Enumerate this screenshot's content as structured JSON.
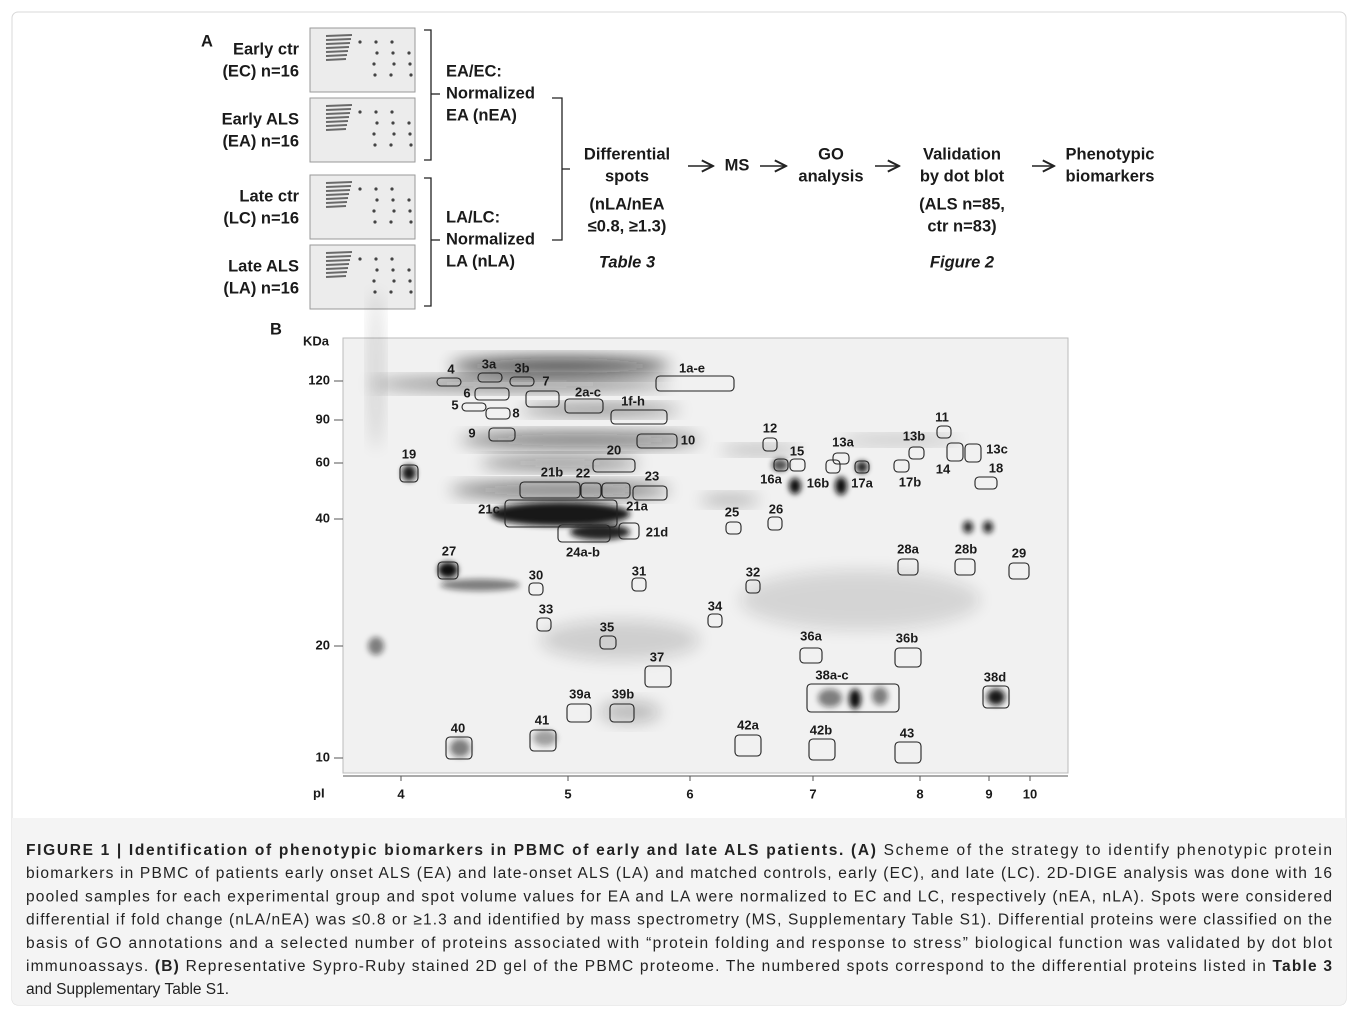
{
  "panel_a": {
    "label": "A",
    "groups": [
      {
        "name": "Early ctr",
        "n": "(EC) n=16"
      },
      {
        "name": "Early ALS",
        "n": "(EA) n=16"
      },
      {
        "name": "Late ctr",
        "n": "(LC) n=16"
      },
      {
        "name": "Late ALS",
        "n": "(LA) n=16"
      }
    ],
    "normalization": [
      [
        "EA/EC:",
        "Normalized",
        "EA (nEA)"
      ],
      [
        "LA/LC:",
        "Normalized",
        "LA (nLA)"
      ]
    ],
    "steps": [
      {
        "lines": [
          "Differential",
          "spots"
        ],
        "criteria": [
          "(nLA/nEA",
          "≤0.8, ≥1.3)"
        ],
        "ref": "Table 3"
      },
      {
        "lines": [
          "MS"
        ]
      },
      {
        "lines": [
          "GO",
          "analysis"
        ]
      },
      {
        "lines": [
          "Validation",
          "by dot blot"
        ],
        "criteria": [
          "(ALS n=85,",
          "ctr n=83)"
        ],
        "ref": "Figure 2"
      },
      {
        "lines": [
          "Phenotypic",
          "biomarkers"
        ]
      }
    ]
  },
  "panel_b": {
    "label": "B",
    "y_axis_label": "KDa",
    "x_axis_label": "pI",
    "yticks": [
      120,
      90,
      60,
      40,
      20,
      10
    ],
    "xticks": [
      4,
      5,
      6,
      7,
      8,
      9,
      10
    ],
    "spots": [
      "4",
      "3a",
      "3b",
      "7",
      "1a-e",
      "6",
      "2a-c",
      "5",
      "8",
      "1f-h",
      "9",
      "10",
      "12",
      "11",
      "13a",
      "13b",
      "13c",
      "15",
      "19",
      "20",
      "14",
      "16a",
      "16b",
      "17a",
      "17b",
      "18",
      "21b",
      "22",
      "23",
      "21c",
      "21a",
      "21d",
      "24a-b",
      "25",
      "26",
      "28a",
      "28b",
      "29",
      "27",
      "30",
      "31",
      "32",
      "33",
      "34",
      "35",
      "36a",
      "36b",
      "37",
      "38a-c",
      "38d",
      "39a",
      "39b",
      "40",
      "41",
      "42a",
      "42b",
      "43"
    ]
  },
  "caption": {
    "lines": [
      [
        {
          "text": "FIGURE 1 | Identification of phenotypic biomarkers in PBMC of early and late ALS patients. (A)",
          "bold": true
        },
        {
          "text": " Scheme of the strategy to identify phenotypic protein"
        }
      ],
      [
        {
          "text": "biomarkers in PBMC of patients early onset ALS (EA) and late-onset ALS (LA) and matched controls, early (EC), and late (LC). 2D-DIGE analysis was done with 16"
        }
      ],
      [
        {
          "text": "pooled samples for each experimental group and spot volume values for EA and LA were normalized to EC and LC, respectively (nEA, nLA). Spots were considered"
        }
      ],
      [
        {
          "text": "differential if fold change (nLA/nEA) was ≤0.8 or ≥1.3 and identified by mass spectrometry (MS, Supplementary Table S1). Differential proteins were classified on the"
        }
      ],
      [
        {
          "text": "basis of GO annotations and a selected number of proteins associated with “protein folding and response to stress” biological function was validated by dot blot"
        }
      ],
      [
        {
          "text": "immunoassays. "
        },
        {
          "text": "(B)",
          "bold": true
        },
        {
          "text": " Representative Sypro-Ruby stained 2D gel of the PBMC proteome. The numbered spots correspond to the differential proteins listed in "
        },
        {
          "text": "Table 3",
          "bold": true
        }
      ],
      [
        {
          "text": "and Supplementary Table S1."
        }
      ]
    ]
  }
}
